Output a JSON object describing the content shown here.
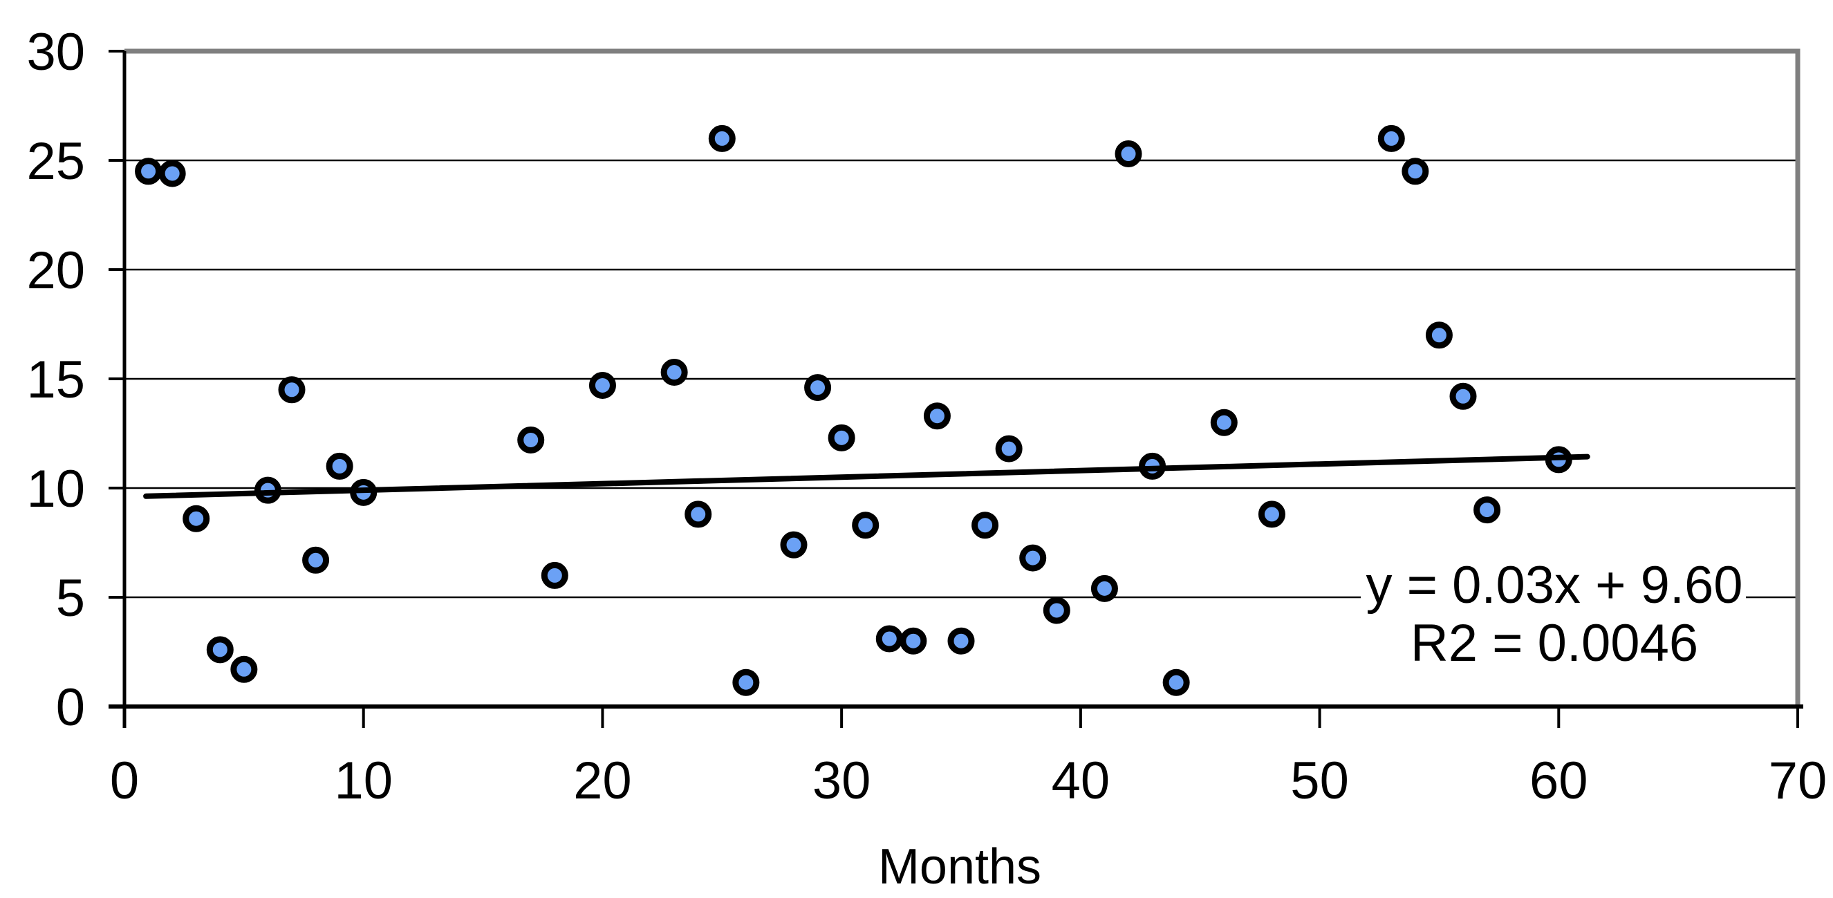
{
  "chart_data": {
    "type": "scatter",
    "title": "",
    "xlabel": "Months",
    "ylabel": "",
    "xlim": [
      0,
      70
    ],
    "ylim": [
      0,
      30
    ],
    "x_ticks": [
      0,
      10,
      20,
      30,
      40,
      50,
      60,
      70
    ],
    "y_ticks": [
      0,
      5,
      10,
      15,
      20,
      25,
      30
    ],
    "grid": "horizontal",
    "legend": "none",
    "points": [
      [
        1,
        24.5
      ],
      [
        2,
        24.4
      ],
      [
        3,
        8.6
      ],
      [
        4,
        2.6
      ],
      [
        5,
        1.7
      ],
      [
        6,
        9.9
      ],
      [
        7,
        14.5
      ],
      [
        8,
        6.7
      ],
      [
        9,
        11.0
      ],
      [
        10,
        9.8
      ],
      [
        17,
        12.2
      ],
      [
        18,
        6.0
      ],
      [
        20,
        14.7
      ],
      [
        23,
        15.3
      ],
      [
        24,
        8.8
      ],
      [
        25,
        26.0
      ],
      [
        26,
        1.1
      ],
      [
        28,
        7.4
      ],
      [
        29,
        14.6
      ],
      [
        30,
        12.3
      ],
      [
        31,
        8.3
      ],
      [
        32,
        3.1
      ],
      [
        33,
        3.0
      ],
      [
        34,
        13.3
      ],
      [
        35,
        3.0
      ],
      [
        36,
        8.3
      ],
      [
        37,
        11.8
      ],
      [
        38,
        6.8
      ],
      [
        39,
        4.4
      ],
      [
        41,
        5.4
      ],
      [
        42,
        25.3
      ],
      [
        43,
        11.0
      ],
      [
        44,
        1.1
      ],
      [
        46,
        13.0
      ],
      [
        48,
        8.8
      ],
      [
        53,
        26.0
      ],
      [
        54,
        24.5
      ],
      [
        55,
        17.0
      ],
      [
        56,
        14.2
      ],
      [
        57,
        9.0
      ],
      [
        60,
        11.3
      ]
    ],
    "trendline": {
      "slope": 0.03,
      "intercept": 9.6,
      "x_start": 0.9,
      "x_end": 61.2
    },
    "annotation": {
      "line1": "y = 0.03x + 9.60",
      "line2": "R2 = 0.0046"
    },
    "colors": {
      "marker_fill": "#6BA1F5",
      "marker_stroke": "#000000",
      "trend_line": "#000000",
      "gridline": "#000000",
      "axis": "#000000",
      "border_gray": "#7F7F7F",
      "text": "#000000",
      "background": "#FFFFFF"
    }
  }
}
